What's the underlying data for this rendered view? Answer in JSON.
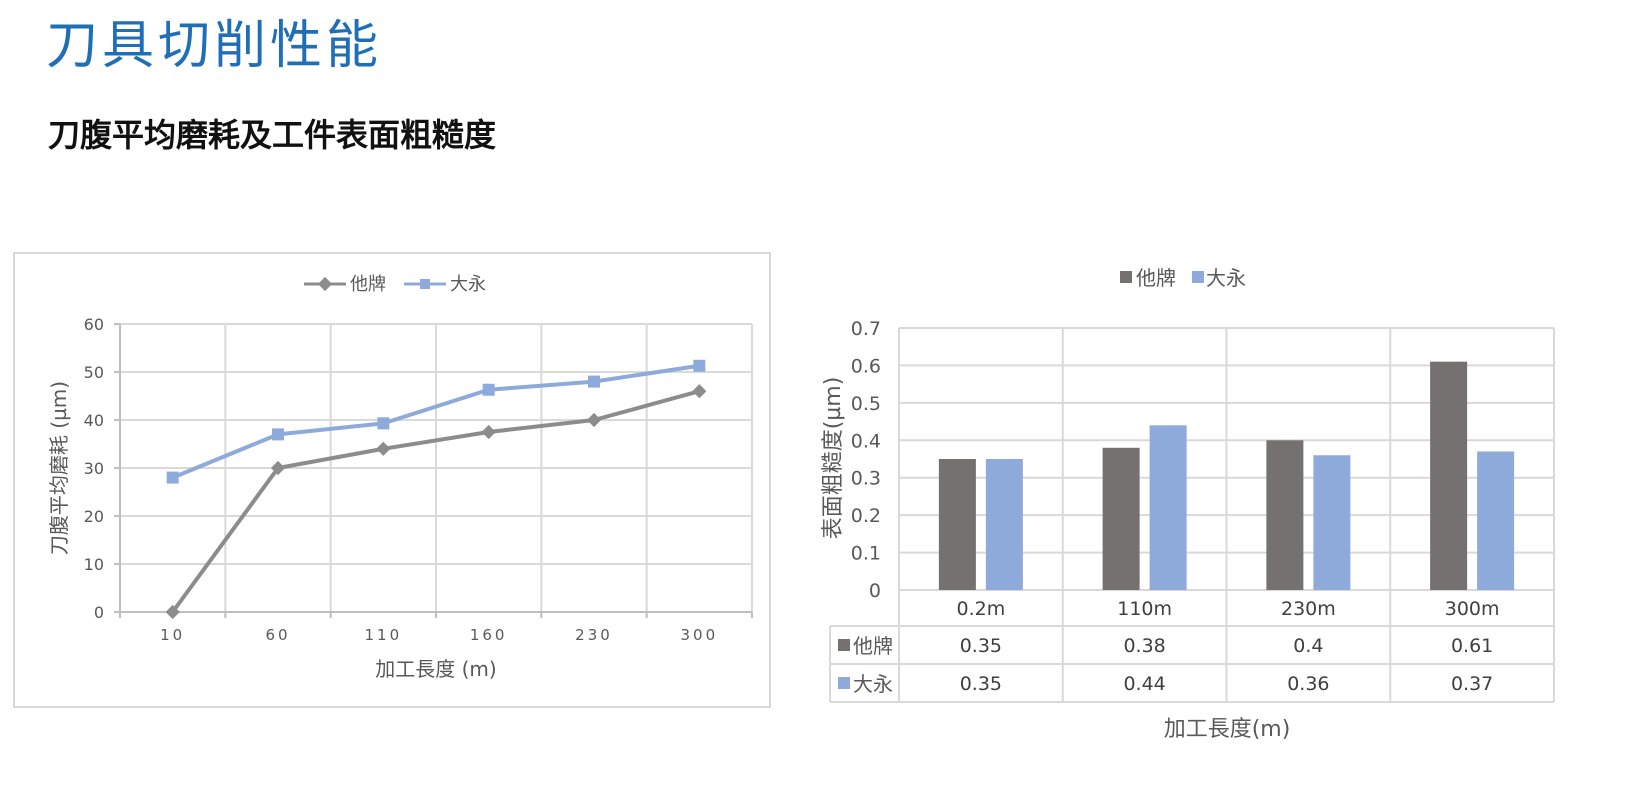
{
  "page": {
    "title": "刀具切削性能",
    "subtitle": "刀腹平均磨耗及工件表面粗糙度"
  },
  "colors": {
    "title": "#1f6fb8",
    "series_other": "#8c8c8c",
    "series_dayong": "#8eaadb",
    "bar_other": "#767171",
    "bar_dayong": "#8eaadb",
    "grid": "#d9d9d9"
  },
  "chart_data": [
    {
      "type": "line",
      "categories": [
        "10",
        "60",
        "110",
        "160",
        "230",
        "300"
      ],
      "series": [
        {
          "name": "他牌",
          "marker": "diamond",
          "values": [
            0,
            30,
            34,
            37.5,
            40,
            46
          ]
        },
        {
          "name": "大永",
          "marker": "square",
          "values": [
            28,
            37,
            39.3,
            46.3,
            48,
            51.3
          ]
        }
      ],
      "xlabel": "加工長度 (m)",
      "ylabel": "刀腹平均磨耗 (µm)",
      "ylim": [
        0,
        60
      ],
      "yticks": [
        "0",
        "10",
        "20",
        "30",
        "40",
        "50",
        "60"
      ],
      "grid": true,
      "legend": "top-center"
    },
    {
      "type": "bar",
      "categories": [
        "0.2m",
        "110m",
        "230m",
        "300m"
      ],
      "series": [
        {
          "name": "他牌",
          "values": [
            0.35,
            0.38,
            0.4,
            0.61
          ],
          "labels": [
            "0.35",
            "0.38",
            "0.4",
            "0.61"
          ]
        },
        {
          "name": "大永",
          "values": [
            0.35,
            0.44,
            0.36,
            0.37
          ],
          "labels": [
            "0.35",
            "0.44",
            "0.36",
            "0.37"
          ]
        }
      ],
      "xlabel": "加工長度(m)",
      "ylabel": "表面粗糙度(µm)",
      "ylim": [
        0,
        0.7
      ],
      "yticks": [
        "0",
        "0.1",
        "0.2",
        "0.3",
        "0.4",
        "0.5",
        "0.6",
        "0.7"
      ],
      "grid": true,
      "legend": "top-center",
      "data_table": true
    }
  ]
}
